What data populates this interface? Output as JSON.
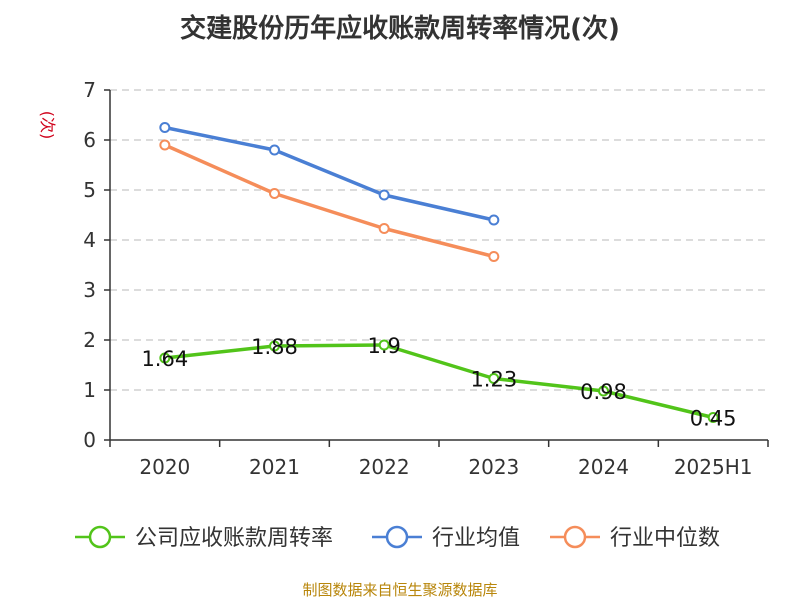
{
  "title": "交建股份历年应收账款周转率情况(次)",
  "source_note": "制图数据来自恒生聚源数据库",
  "chart_data": {
    "type": "line",
    "title": "交建股份历年应收账款周转率情况(次)",
    "ylabel": "(次)",
    "xlabel": "",
    "categories": [
      "2020",
      "2021",
      "2022",
      "2023",
      "2024",
      "2025H1"
    ],
    "ylim": [
      0,
      7
    ],
    "yticks": [
      0,
      1,
      2,
      3,
      4,
      5,
      6,
      7
    ],
    "grid": true,
    "legend_position": "bottom",
    "series": [
      {
        "name": "公司应收账款周转率",
        "color": "#52c41a",
        "values": [
          1.64,
          1.88,
          1.9,
          1.23,
          0.98,
          0.45
        ],
        "labels": [
          "1.64",
          "1.88",
          "1.9",
          "1.23",
          "0.98",
          "0.45"
        ]
      },
      {
        "name": "行业均值",
        "color": "#4a7fd4",
        "values": [
          6.25,
          5.8,
          4.9,
          4.4,
          null,
          null
        ]
      },
      {
        "name": "行业中位数",
        "color": "#f58d5a",
        "values": [
          5.9,
          4.93,
          4.23,
          3.67,
          null,
          null
        ]
      }
    ]
  }
}
